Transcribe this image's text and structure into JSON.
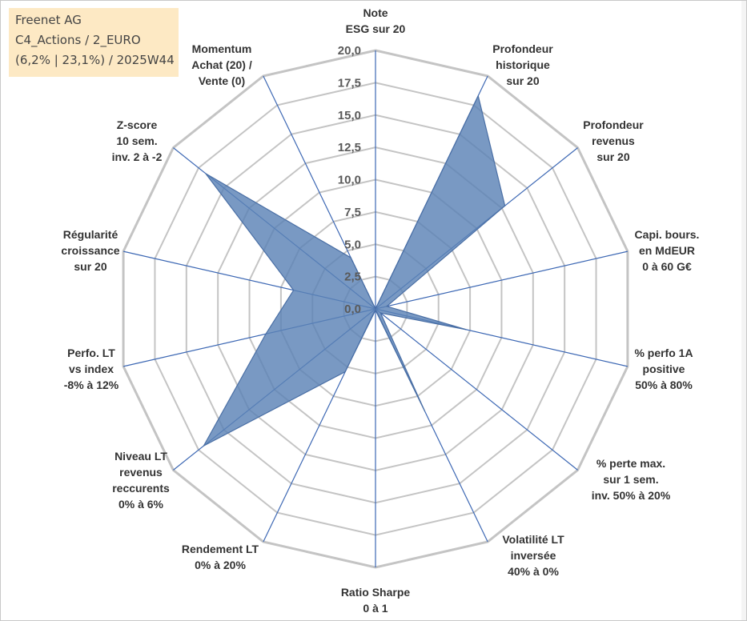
{
  "info": {
    "line1": "Freenet AG",
    "line2": "C4_Actions / 2_EURO",
    "line3": "(6,2% | 23,1%) / 2025W44"
  },
  "colors": {
    "grid": "#c4c4c4",
    "spoke": "#3d68b4",
    "fill": "#5b82b6",
    "stroke": "#4a6fa5",
    "info_bg": "#fde9c4"
  },
  "chart_data": {
    "type": "radar",
    "rmin": 0,
    "rmax": 20,
    "grid_step": 2.5,
    "tick_labels": [
      "0,0",
      "2,5",
      "5,0",
      "7,5",
      "10,0",
      "12,5",
      "15,0",
      "17,5",
      "20,0"
    ],
    "axes": [
      {
        "lines": [
          "Note",
          "ESG sur 20"
        ],
        "value": 0
      },
      {
        "lines": [
          "Profondeur",
          "historique",
          "sur 20"
        ],
        "value": 18.3
      },
      {
        "lines": [
          "Profondeur",
          "revenus",
          "sur 20"
        ],
        "value": 12.8
      },
      {
        "lines": [
          "Capi. bours.",
          "en MdEUR",
          "0 à 60 G€"
        ],
        "value": 0.9
      },
      {
        "lines": [
          "% perfo 1A",
          "positive",
          "50% à 80%"
        ],
        "value": 7.2
      },
      {
        "lines": [
          "% perte max.",
          "sur 1 sem.",
          "inv. 50% à 20%"
        ],
        "value": 0.5
      },
      {
        "lines": [
          "Volatilité LT",
          "inversée",
          "40% à 0%"
        ],
        "value": 8.8
      },
      {
        "lines": [
          "Ratio Sharpe",
          "0 à 1"
        ],
        "value": 0.1
      },
      {
        "lines": [
          "Rendement LT",
          "0% à 20%"
        ],
        "value": 5.4
      },
      {
        "lines": [
          "Niveau LT",
          "revenus",
          "reccurents",
          "0% à 6%"
        ],
        "value": 17.0
      },
      {
        "lines": [
          "Perfo. LT",
          "vs index",
          "-8% à 12%"
        ],
        "value": 8.7
      },
      {
        "lines": [
          "Régularité",
          "croissance",
          "sur 20"
        ],
        "value": 6.5
      },
      {
        "lines": [
          "Z-score",
          "10 sem.",
          "inv. 2 à -2"
        ],
        "value": 16.8
      },
      {
        "lines": [
          "Momentum",
          "Achat (20) /",
          "Vente (0)"
        ],
        "value": 4.4
      }
    ]
  }
}
